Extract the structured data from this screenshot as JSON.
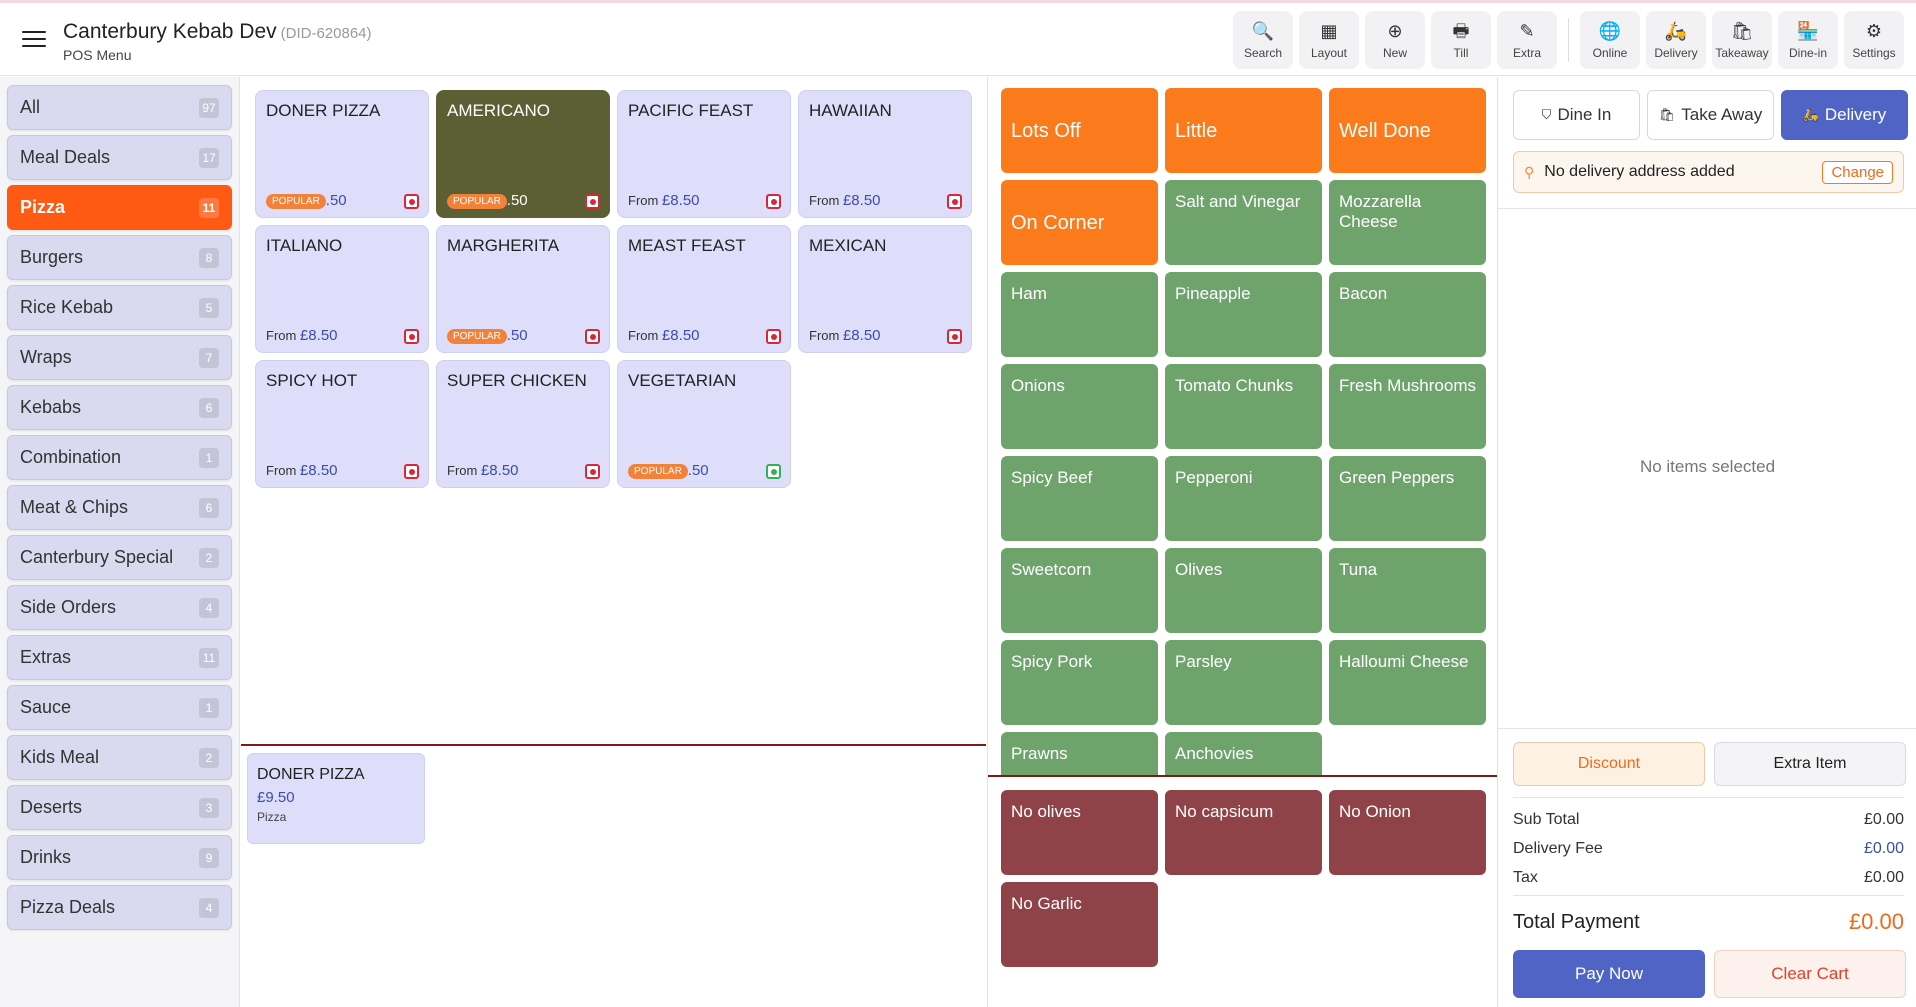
{
  "header": {
    "title": "Canterbury Kebab Dev",
    "did": "(DID-620864)",
    "subtitle": "POS Menu"
  },
  "toolbar": [
    {
      "label": "Search",
      "icon": "search-icon",
      "glyph": "🔍"
    },
    {
      "label": "Layout",
      "icon": "layout-icon",
      "glyph": "▦"
    },
    {
      "label": "New",
      "icon": "plus-circle-icon",
      "glyph": "⊕"
    },
    {
      "label": "Till",
      "icon": "till-icon",
      "glyph": "🖶"
    },
    {
      "label": "Extra",
      "icon": "extra-icon",
      "glyph": "✎"
    },
    {
      "label": "Online",
      "icon": "globe-icon",
      "glyph": "🌐"
    },
    {
      "label": "Delivery",
      "icon": "scooter-icon",
      "glyph": "🛵"
    },
    {
      "label": "Takeaway",
      "icon": "bag-icon",
      "glyph": "🛍"
    },
    {
      "label": "Dine-in",
      "icon": "store-icon",
      "glyph": "🏪"
    },
    {
      "label": "Settings",
      "icon": "gear-icon",
      "glyph": "⚙"
    }
  ],
  "categories": [
    {
      "label": "All",
      "count": "97"
    },
    {
      "label": "Meal Deals",
      "count": "17"
    },
    {
      "label": "Pizza",
      "count": "11",
      "active": true
    },
    {
      "label": "Burgers",
      "count": "8"
    },
    {
      "label": "Rice Kebab",
      "count": "5"
    },
    {
      "label": "Wraps",
      "count": "7"
    },
    {
      "label": "Kebabs",
      "count": "6"
    },
    {
      "label": "Combination",
      "count": "1"
    },
    {
      "label": "Meat & Chips",
      "count": "6"
    },
    {
      "label": "Canterbury Special",
      "count": "2"
    },
    {
      "label": "Side Orders",
      "count": "4"
    },
    {
      "label": "Extras",
      "count": "11"
    },
    {
      "label": "Sauce",
      "count": "1"
    },
    {
      "label": "Kids Meal",
      "count": "2"
    },
    {
      "label": "Deserts",
      "count": "3"
    },
    {
      "label": "Drinks",
      "count": "9"
    },
    {
      "label": "Pizza Deals",
      "count": "4"
    }
  ],
  "products": [
    {
      "name": "DONER PIZZA",
      "popular": true,
      "price_partial": ".50",
      "veg": false
    },
    {
      "name": "AMERICANO",
      "popular": true,
      "price_partial": ".50",
      "veg": false,
      "dark": true
    },
    {
      "name": "PACIFIC FEAST",
      "popular": false,
      "from": "From",
      "price": "£8.50",
      "veg": false
    },
    {
      "name": "HAWAIIAN",
      "popular": false,
      "from": "From",
      "price": "£8.50",
      "veg": false
    },
    {
      "name": "ITALIANO",
      "popular": false,
      "from": "From",
      "price": "£8.50",
      "veg": false
    },
    {
      "name": "MARGHERITA",
      "popular": true,
      "price_partial": ".50",
      "veg": false
    },
    {
      "name": "MEAST FEAST",
      "popular": false,
      "from": "From",
      "price": "£8.50",
      "veg": false
    },
    {
      "name": "MEXICAN",
      "popular": false,
      "from": "From",
      "price": "£8.50",
      "veg": false
    },
    {
      "name": "SPICY HOT",
      "popular": false,
      "from": "From",
      "price": "£8.50",
      "veg": false
    },
    {
      "name": "SUPER CHICKEN",
      "popular": false,
      "from": "From",
      "price": "£8.50",
      "veg": false
    },
    {
      "name": "VEGETARIAN",
      "popular": true,
      "price_partial": ".50",
      "veg": true
    }
  ],
  "popular_label": "POPULAR",
  "selected_item": {
    "name": "DONER PIZZA",
    "price": "£9.50",
    "category": "Pizza"
  },
  "modifiers": [
    {
      "label": "Lots Off",
      "color": "orange"
    },
    {
      "label": "Little",
      "color": "orange"
    },
    {
      "label": "Well Done",
      "color": "orange"
    },
    {
      "label": "On Corner",
      "color": "orange"
    },
    {
      "label": "Salt and Vinegar",
      "color": "green"
    },
    {
      "label": "Mozzarella Cheese",
      "color": "green"
    },
    {
      "label": "Ham",
      "color": "green"
    },
    {
      "label": "Pineapple",
      "color": "green"
    },
    {
      "label": "Bacon",
      "color": "green"
    },
    {
      "label": "Onions",
      "color": "green"
    },
    {
      "label": "Tomato Chunks",
      "color": "green"
    },
    {
      "label": "Fresh Mushrooms",
      "color": "green"
    },
    {
      "label": "Spicy Beef",
      "color": "green"
    },
    {
      "label": "Pepperoni",
      "color": "green"
    },
    {
      "label": "Green Peppers",
      "color": "green"
    },
    {
      "label": "Sweetcorn",
      "color": "green"
    },
    {
      "label": "Olives",
      "color": "green"
    },
    {
      "label": "Tuna",
      "color": "green"
    },
    {
      "label": "Spicy Pork",
      "color": "green"
    },
    {
      "label": "Parsley",
      "color": "green"
    },
    {
      "label": "Halloumi Cheese",
      "color": "green"
    },
    {
      "label": "Prawns",
      "color": "green"
    },
    {
      "label": "Anchovies",
      "color": "green"
    }
  ],
  "removals": [
    {
      "label": "No olives"
    },
    {
      "label": "No capsicum"
    },
    {
      "label": "No Onion"
    },
    {
      "label": "No Garlic"
    }
  ],
  "order_types": [
    {
      "label": "Dine In",
      "glyph": "⛉"
    },
    {
      "label": "Take Away",
      "glyph": "🛍"
    },
    {
      "label": "Delivery",
      "glyph": "🛵",
      "active": true
    }
  ],
  "address": {
    "text": "No delivery address added",
    "change_label": "Change"
  },
  "cart": {
    "empty_text": "No items selected"
  },
  "actions": {
    "discount": "Discount",
    "extra_item": "Extra Item",
    "pay_now": "Pay Now",
    "clear_cart": "Clear Cart"
  },
  "summary": {
    "sub_total_label": "Sub Total",
    "sub_total": "£0.00",
    "delivery_fee_label": "Delivery Fee",
    "delivery_fee": "£0.00",
    "tax_label": "Tax",
    "tax": "£0.00",
    "total_label": "Total Payment",
    "total": "£0.00"
  },
  "colors": {
    "accent": "#ff5a14",
    "primary": "#4f64c4",
    "modifier_orange": "#fa7a1c",
    "modifier_green": "#6ea36b",
    "modifier_maroon": "#8f4248"
  }
}
